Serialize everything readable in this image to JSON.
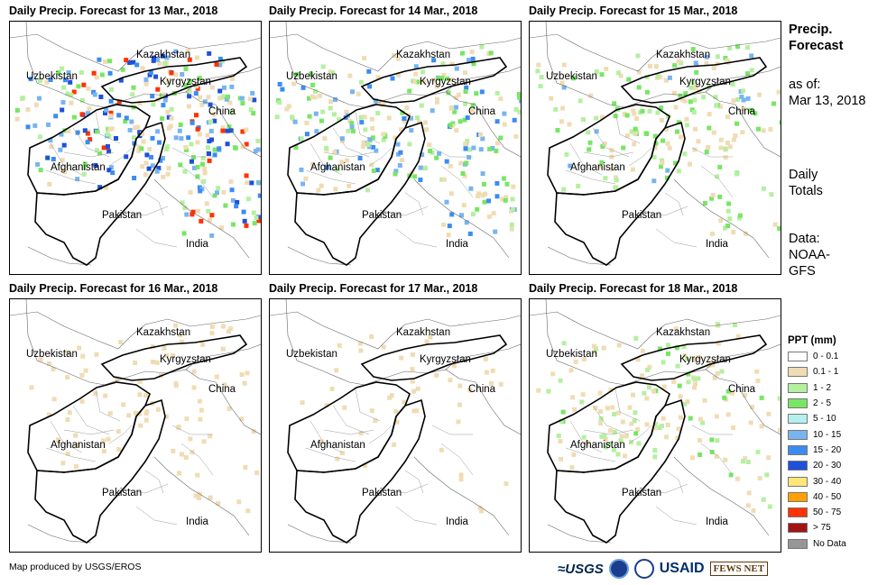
{
  "panels": [
    {
      "title": "Daily Precip. Forecast for 13 Mar., 2018",
      "intensity": 1.0
    },
    {
      "title": "Daily Precip. Forecast for 14 Mar., 2018",
      "intensity": 0.8
    },
    {
      "title": "Daily Precip. Forecast for 15 Mar., 2018",
      "intensity": 0.6
    },
    {
      "title": "Daily Precip. Forecast for 16 Mar., 2018",
      "intensity": 0.25
    },
    {
      "title": "Daily Precip. Forecast for 17 Mar., 2018",
      "intensity": 0.1
    },
    {
      "title": "Daily Precip. Forecast for 18 Mar., 2018",
      "intensity": 0.45
    }
  ],
  "map_labels": {
    "kazakhstan": "Kazakhstan",
    "uzbekistan": "Uzbekistan",
    "kyrgyzstan": "Kyrgyzstan",
    "china": "China",
    "afghanistan": "Afghanistan",
    "pakistan": "Pakistan",
    "india": "India"
  },
  "side": {
    "title_line1": "Precip.",
    "title_line2": "Forecast",
    "asof_line1": "as of:",
    "asof_line2": "Mar 13, 2018",
    "totals_line1": "Daily",
    "totals_line2": "Totals",
    "data_line1": "Data:",
    "data_line2": "NOAA-",
    "data_line3": "GFS"
  },
  "legend": {
    "title": "PPT (mm)",
    "items": [
      {
        "label": "0 - 0.1",
        "color": "#ffffff"
      },
      {
        "label": "0.1 - 1",
        "color": "#f0dcb4"
      },
      {
        "label": "1 - 2",
        "color": "#b4f0a0"
      },
      {
        "label": "2 - 5",
        "color": "#78e664"
      },
      {
        "label": "5 - 10",
        "color": "#b4f0f0"
      },
      {
        "label": "10 - 15",
        "color": "#78b4f0"
      },
      {
        "label": "15 - 20",
        "color": "#3c8cf0"
      },
      {
        "label": "20 - 30",
        "color": "#1e50dc"
      },
      {
        "label": "30 - 40",
        "color": "#ffe678"
      },
      {
        "label": "40 - 50",
        "color": "#ffa000"
      },
      {
        "label": "50 - 75",
        "color": "#ff3200"
      },
      {
        "label": "> 75",
        "color": "#a01414"
      },
      {
        "label": "No Data",
        "color": "#969696"
      }
    ]
  },
  "credit": "Map produced by USGS/EROS",
  "logos": {
    "usgs": "≈USGS",
    "usaid": "USAID",
    "fews": "FEWS NET"
  }
}
